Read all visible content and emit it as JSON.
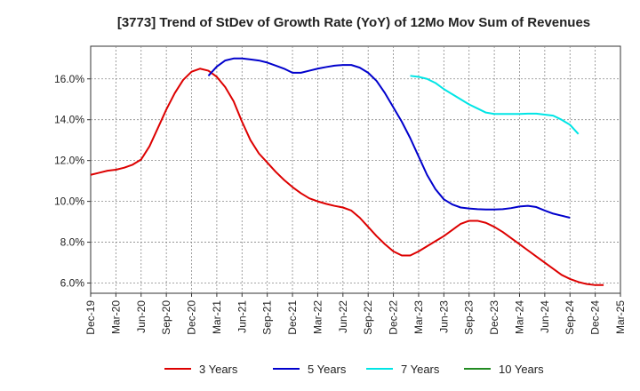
{
  "chart_data": {
    "type": "line",
    "title": "[3773]  Trend of StDev of Growth Rate (YoY) of 12Mo Mov Sum of Revenues",
    "xlabel": "",
    "ylabel": "",
    "ylim": [
      5.5,
      17.6
    ],
    "y_ticks": [
      6,
      8,
      10,
      12,
      14,
      16
    ],
    "y_tick_labels": [
      "6.0%",
      "8.0%",
      "10.0%",
      "12.0%",
      "14.0%",
      "16.0%"
    ],
    "x_tick_labels": [
      "Dec-19",
      "Mar-20",
      "Jun-20",
      "Sep-20",
      "Dec-20",
      "Mar-21",
      "Jun-21",
      "Sep-21",
      "Dec-21",
      "Mar-22",
      "Jun-22",
      "Sep-22",
      "Dec-22",
      "Mar-23",
      "Jun-23",
      "Sep-23",
      "Dec-23",
      "Mar-24",
      "Jun-24",
      "Sep-24",
      "Dec-24",
      "Mar-25"
    ],
    "grid": true,
    "legend_position": "bottom",
    "series": [
      {
        "name": "3 Years",
        "color": "#dd0000",
        "start_index": 0,
        "values": [
          11.3,
          11.4,
          11.5,
          11.55,
          11.65,
          11.8,
          12.05,
          12.7,
          13.6,
          14.5,
          15.3,
          15.95,
          16.35,
          16.5,
          16.4,
          16.1,
          15.6,
          14.9,
          13.9,
          13.0,
          12.35,
          11.9,
          11.45,
          11.05,
          10.7,
          10.4,
          10.15,
          10.0,
          9.88,
          9.78,
          9.7,
          9.55,
          9.2,
          8.75,
          8.3,
          7.9,
          7.55,
          7.35,
          7.35,
          7.55,
          7.8,
          8.05,
          8.3,
          8.6,
          8.9,
          9.05,
          9.05,
          8.95,
          8.75,
          8.5,
          8.2,
          7.9,
          7.6,
          7.3,
          7.0,
          6.7,
          6.4,
          6.2,
          6.05,
          5.95,
          5.9,
          5.9
        ]
      },
      {
        "name": "5 Years",
        "color": "#0000cc",
        "start_index": 14,
        "values": [
          16.15,
          16.6,
          16.9,
          17.0,
          17.0,
          16.95,
          16.9,
          16.8,
          16.65,
          16.5,
          16.3,
          16.3,
          16.4,
          16.5,
          16.58,
          16.65,
          16.68,
          16.68,
          16.55,
          16.3,
          15.9,
          15.3,
          14.6,
          13.9,
          13.1,
          12.2,
          11.3,
          10.6,
          10.1,
          9.85,
          9.7,
          9.65,
          9.62,
          9.6,
          9.6,
          9.62,
          9.67,
          9.75,
          9.78,
          9.72,
          9.55,
          9.4,
          9.3,
          9.2
        ]
      },
      {
        "name": "7 Years",
        "color": "#00e5e5",
        "start_index": 38,
        "values": [
          16.15,
          16.1,
          16.0,
          15.8,
          15.5,
          15.25,
          15.0,
          14.75,
          14.55,
          14.35,
          14.28,
          14.28,
          14.28,
          14.28,
          14.3,
          14.3,
          14.25,
          14.2,
          14.0,
          13.75,
          13.3
        ]
      },
      {
        "name": "10 Years",
        "color": "#228b22",
        "start_index": 0,
        "values": []
      }
    ]
  }
}
